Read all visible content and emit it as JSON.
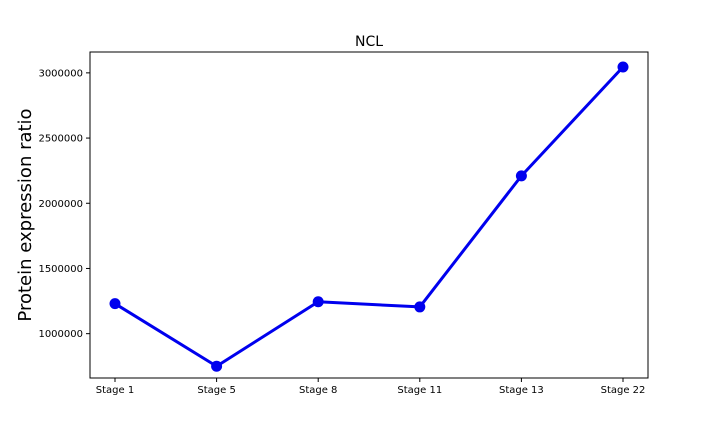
{
  "chart_data": {
    "type": "line",
    "title": "NCL",
    "xlabel": "",
    "ylabel": "Protein expression ratio",
    "categories": [
      "Stage 1",
      "Stage 5",
      "Stage 8",
      "Stage 11",
      "Stage 13",
      "Stage 22"
    ],
    "series": [
      {
        "values": [
          1230000,
          750000,
          1245000,
          1205000,
          2210000,
          3045000
        ],
        "color": "#0000ee"
      }
    ],
    "ylim": [
      660000,
      3160000
    ],
    "yticks": [
      1000000,
      1500000,
      2000000,
      2500000,
      3000000
    ],
    "ytick_labels": [
      "1000000",
      "1500000",
      "2000000",
      "2500000",
      "3000000"
    ],
    "grid": false,
    "legend": "none",
    "marker": "circle"
  }
}
